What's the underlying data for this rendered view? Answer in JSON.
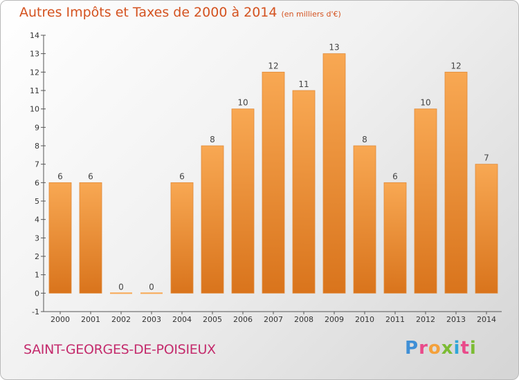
{
  "title": "Autres Impôts et Taxes de 2000 à 2014",
  "unit": "(en milliers d'€)",
  "town": "SAINT-GEORGES-DE-POISIEUX",
  "logo": {
    "letters": [
      "P",
      "r",
      "o",
      "x",
      "i",
      "t",
      "i"
    ]
  },
  "colors": {
    "bar_top": "#f8a853",
    "bar_bottom": "#d9741c",
    "title": "#d4521f",
    "town": "#c42b6c"
  },
  "chart_data": {
    "type": "bar",
    "categories": [
      "2000",
      "2001",
      "2002",
      "2003",
      "2004",
      "2005",
      "2006",
      "2007",
      "2008",
      "2009",
      "2010",
      "2011",
      "2012",
      "2013",
      "2014"
    ],
    "values": [
      6,
      6,
      0,
      0,
      6,
      8,
      10,
      12,
      11,
      13,
      8,
      6,
      10,
      12,
      7
    ],
    "value_labels": [
      "6",
      "6",
      "0",
      "0",
      "6",
      "8",
      "10",
      "12",
      "11",
      "13",
      "8",
      "6",
      "10",
      "12",
      "7"
    ],
    "y_ticks": [
      "-1",
      "0",
      "1",
      "2",
      "3",
      "4",
      "5",
      "6",
      "7",
      "8",
      "9",
      "10",
      "11",
      "12",
      "13",
      "14"
    ],
    "ylim": [
      -1,
      14
    ],
    "grid": false
  }
}
